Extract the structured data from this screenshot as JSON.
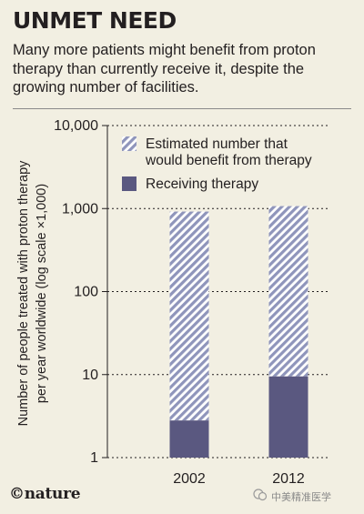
{
  "header": {
    "title": "UNMET NEED",
    "subtitle": "Many more patients might benefit from proton therapy than currently receive it, despite the growing number of facilities."
  },
  "chart_data": {
    "type": "bar",
    "stacked": true,
    "yscale": "log",
    "ylim": [
      1,
      10000
    ],
    "yticks": [
      1,
      10,
      100,
      1000,
      10000
    ],
    "ytick_labels": [
      "1",
      "10",
      "100",
      "1,000",
      "10,000"
    ],
    "ylabel": [
      "Number of people treated with proton therapy",
      "per year worldwide (log scale ×1,000)"
    ],
    "categories": [
      "2002",
      "2012"
    ],
    "series": [
      {
        "name": "Receiving therapy",
        "values": [
          2.8,
          9.5
        ],
        "color": "#5a5880",
        "pattern": "solid"
      },
      {
        "name": "Estimated number that would benefit from therapy",
        "values": [
          920,
          1070
        ],
        "color": "#8f95bb",
        "pattern": "hatched"
      }
    ],
    "legend": {
      "placement": "top-right",
      "items": [
        {
          "lines": [
            "Estimated number that",
            "would benefit from therapy"
          ],
          "pattern": "hatched"
        },
        {
          "lines": [
            "Receiving therapy"
          ],
          "pattern": "solid"
        }
      ]
    }
  },
  "footer": {
    "logo": "©nature",
    "watermark": "中美精准医学"
  }
}
